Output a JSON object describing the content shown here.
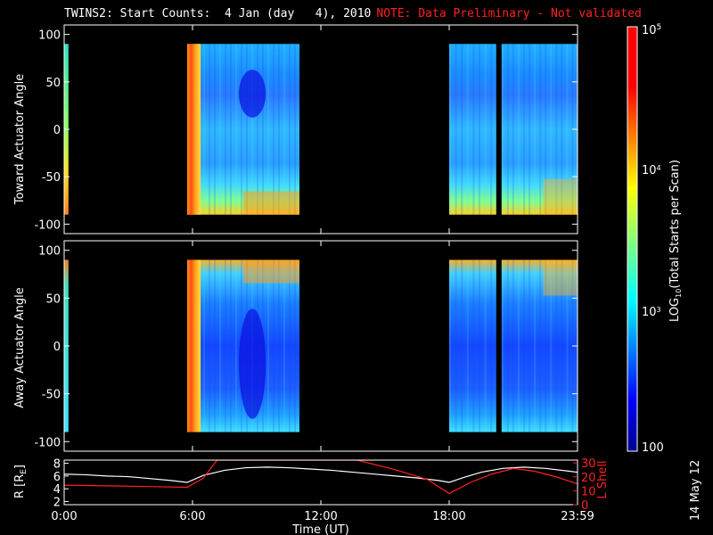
{
  "title": "TWINS2: Start Counts:  4 Jan (day   4), 2010",
  "note": "NOTE: Data Preliminary - Not validated",
  "date_stamp": "14 May 12",
  "colors": {
    "background": "#000000",
    "axes": "#ffffff",
    "note": "#ff2020",
    "l_shell_line": "#ff2020",
    "r_line": "#ffffff"
  },
  "chart_data": [
    {
      "type": "heatmap",
      "panel": "top",
      "ylabel": "Toward Actuator Angle",
      "yticks": [
        "100",
        "50",
        "0",
        "-50",
        "-100"
      ],
      "ylim": [
        -110,
        110
      ],
      "xlim": [
        0,
        24
      ],
      "x_unit": "hours UT",
      "data_angle_range": [
        -90,
        90
      ],
      "data_blocks_hours": [
        [
          0.0,
          0.2
        ],
        [
          5.75,
          11.0
        ],
        [
          18.0,
          20.2
        ],
        [
          20.45,
          23.98
        ]
      ]
    },
    {
      "type": "heatmap",
      "panel": "middle",
      "ylabel": "Away Actuator Angle",
      "yticks": [
        "100",
        "50",
        "0",
        "-50",
        "-100"
      ],
      "ylim": [
        -110,
        110
      ],
      "xlim": [
        0,
        24
      ],
      "data_angle_range": [
        -90,
        90
      ],
      "data_blocks_hours": [
        [
          0.0,
          0.2
        ],
        [
          5.75,
          11.0
        ],
        [
          18.0,
          20.2
        ],
        [
          20.45,
          23.98
        ]
      ]
    },
    {
      "type": "line",
      "panel": "bottom",
      "xlabel": "Time (UT)",
      "xticks": [
        "0:00",
        "6:00",
        "12:00",
        "18:00",
        "23:59"
      ],
      "xlim": [
        0,
        24
      ],
      "ylabel_left": "R [R",
      "ylabel_left_sub": "E",
      "ylabel_left_end": "]",
      "yticks_left": [
        "2",
        "4",
        "6",
        "8"
      ],
      "ylim_left": [
        1.5,
        8.5
      ],
      "ylabel_right": "L Shell",
      "yticks_right": [
        "0",
        "10",
        "20",
        "30"
      ],
      "ylim_right": [
        0,
        32
      ],
      "series": [
        {
          "name": "R [RE]",
          "x": [
            0,
            1,
            2,
            3,
            4,
            5,
            5.75,
            6.5,
            7.5,
            8.5,
            9.5,
            10.5,
            11.5,
            12.5,
            13.5,
            14.5,
            15.5,
            16.5,
            17.5,
            18.0,
            18.7,
            19.5,
            20.5,
            21.5,
            22.5,
            23.5,
            23.98
          ],
          "y": [
            6.3,
            6.2,
            6.0,
            5.9,
            5.6,
            5.3,
            5.0,
            6.1,
            6.9,
            7.3,
            7.4,
            7.3,
            7.1,
            6.9,
            6.6,
            6.3,
            6.0,
            5.7,
            5.3,
            5.0,
            5.8,
            6.6,
            7.2,
            7.4,
            7.2,
            6.8,
            6.6
          ]
        },
        {
          "name": "L Shell",
          "x": [
            0,
            2,
            4,
            5.75,
            6.5,
            7.15,
            13.7,
            15.5,
            17.0,
            18.0,
            19.0,
            20.0,
            21.0,
            22.0,
            23.0,
            23.98
          ],
          "y": [
            14,
            13.5,
            13,
            12.5,
            19,
            32,
            32,
            25,
            18,
            8,
            16,
            22,
            26,
            24,
            20,
            15
          ]
        }
      ]
    }
  ],
  "colorbar": {
    "label_pre": "LOG",
    "label_sub": "10",
    "label_post": "(Total Starts per Scan)",
    "tick_100": "100",
    "tick_1e3_base": "10",
    "tick_1e3_exp": "3",
    "tick_1e4_base": "10",
    "tick_1e4_exp": "4",
    "tick_1e5_base": "10",
    "tick_1e5_exp": "5",
    "range_log10": [
      2,
      5
    ]
  }
}
